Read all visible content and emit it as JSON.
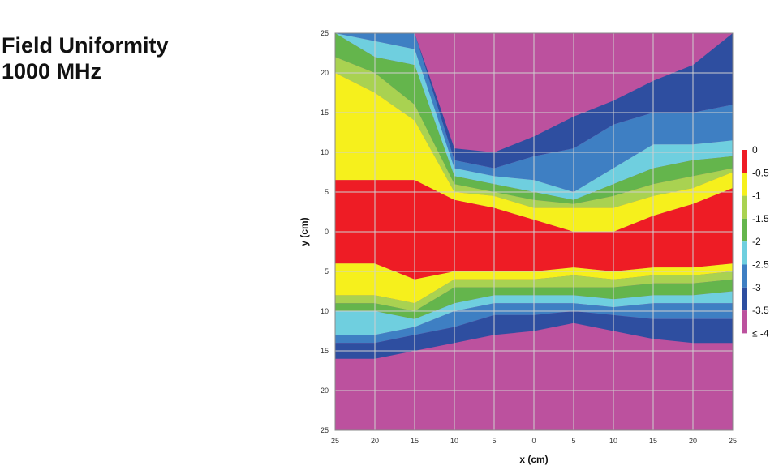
{
  "title": {
    "line1": "Field Uniformity",
    "line2": "1000 MHz"
  },
  "colors": {
    "red": "#ee1c25",
    "yellow": "#f6f01c",
    "light_green": "#a9d251",
    "green": "#64b54c",
    "cyan": "#6fcfdf",
    "blue": "#3e7fc3",
    "dark_blue": "#2e4ea0",
    "magenta": "#bc519e",
    "grid": "#cfcfcf"
  },
  "chart_data": {
    "type": "heatmap",
    "title": "",
    "xlabel": "x (cm)",
    "ylabel": "y (cm)",
    "x_ticks": [
      "25",
      "20",
      "15",
      "10",
      "5",
      "0",
      "5",
      "10",
      "15",
      "20",
      "25"
    ],
    "y_ticks": [
      "25",
      "20",
      "15",
      "10",
      "5",
      "0",
      "5",
      "10",
      "15",
      "20",
      "25"
    ],
    "xlim": [
      -25,
      25
    ],
    "ylim": [
      -25,
      25
    ],
    "grid": true,
    "legend_position": "right",
    "legend": [
      {
        "label": "0",
        "color": "#ee1c25"
      },
      {
        "label": "-0.5",
        "color": "#f6f01c"
      },
      {
        "label": "-1",
        "color": "#a9d251"
      },
      {
        "label": "-1.5",
        "color": "#64b54c"
      },
      {
        "label": "-2",
        "color": "#6fcfdf"
      },
      {
        "label": "-2.5",
        "color": "#3e7fc3"
      },
      {
        "label": "-3",
        "color": "#2e4ea0"
      },
      {
        "label": "-3.5",
        "color": "#bc519e"
      },
      {
        "label": "≤ -4",
        "color": ""
      }
    ],
    "x": [
      -25,
      -20,
      -15,
      -10,
      -5,
      0,
      5,
      10,
      15,
      20,
      25
    ],
    "band_order": [
      "≤ -4",
      "-3.5",
      "-3",
      "-2.5",
      "-2",
      "-1.5",
      "-1",
      "-0.5",
      "0"
    ],
    "band_colors": [
      "#bc519e",
      "#2e4ea0",
      "#3e7fc3",
      "#6fcfdf",
      "#64b54c",
      "#a9d251",
      "#f6f01c",
      "#ee1c25"
    ],
    "contours": {
      "upper": [
        {
          "level": "-3.5",
          "y": [
            25,
            25,
            25,
            10.5,
            10,
            12,
            14.5,
            16.5,
            19,
            21,
            25
          ]
        },
        {
          "level": "-3",
          "y": [
            25,
            25,
            25,
            9,
            8,
            9.5,
            10.5,
            13.5,
            15,
            15,
            16
          ]
        },
        {
          "level": "-2.5",
          "y": [
            25,
            24,
            23,
            8,
            7,
            6.5,
            5,
            8,
            11,
            11,
            11.5
          ]
        },
        {
          "level": "-2",
          "y": [
            25,
            22,
            21,
            7,
            6,
            5,
            4,
            6,
            8,
            9,
            9.5
          ]
        },
        {
          "level": "-1.5",
          "y": [
            22,
            20,
            16,
            6,
            5,
            4,
            3.5,
            4.5,
            6,
            7,
            8
          ]
        },
        {
          "level": "-1",
          "y": [
            20,
            17.5,
            14,
            5,
            4.5,
            3,
            3,
            3,
            4.5,
            5.5,
            7.5
          ]
        },
        {
          "level": "-0.5",
          "y": [
            6.5,
            6.5,
            6.5,
            4,
            3,
            1.5,
            0,
            0,
            2,
            3.5,
            5.5
          ]
        }
      ],
      "lower": [
        {
          "level": "-0.5",
          "y": [
            -4,
            -4,
            -6,
            -5,
            -5,
            -5,
            -4.5,
            -5,
            -4.5,
            -4.5,
            -4
          ]
        },
        {
          "level": "-1",
          "y": [
            -8,
            -8,
            -9,
            -6,
            -6,
            -6,
            -5.5,
            -6,
            -5.5,
            -5.5,
            -5
          ]
        },
        {
          "level": "-1.5",
          "y": [
            -9,
            -9,
            -10,
            -7,
            -7,
            -7,
            -7,
            -7,
            -6.5,
            -6.5,
            -6
          ]
        },
        {
          "level": "-2",
          "y": [
            -10,
            -10,
            -11,
            -9,
            -8,
            -8,
            -8,
            -8.5,
            -8,
            -8,
            -7.5
          ]
        },
        {
          "level": "-2.5",
          "y": [
            -13,
            -13,
            -12,
            -10,
            -9,
            -9,
            -9,
            -9.5,
            -9,
            -9,
            -9
          ]
        },
        {
          "level": "-3",
          "y": [
            -14,
            -14,
            -13,
            -12,
            -10.5,
            -10.5,
            -10,
            -10.5,
            -11,
            -11,
            -11
          ]
        },
        {
          "level": "-3.5",
          "y": [
            -16,
            -16,
            -15,
            -14,
            -13,
            -12.5,
            -11.5,
            -12.5,
            -13.5,
            -14,
            -14
          ]
        }
      ]
    }
  }
}
